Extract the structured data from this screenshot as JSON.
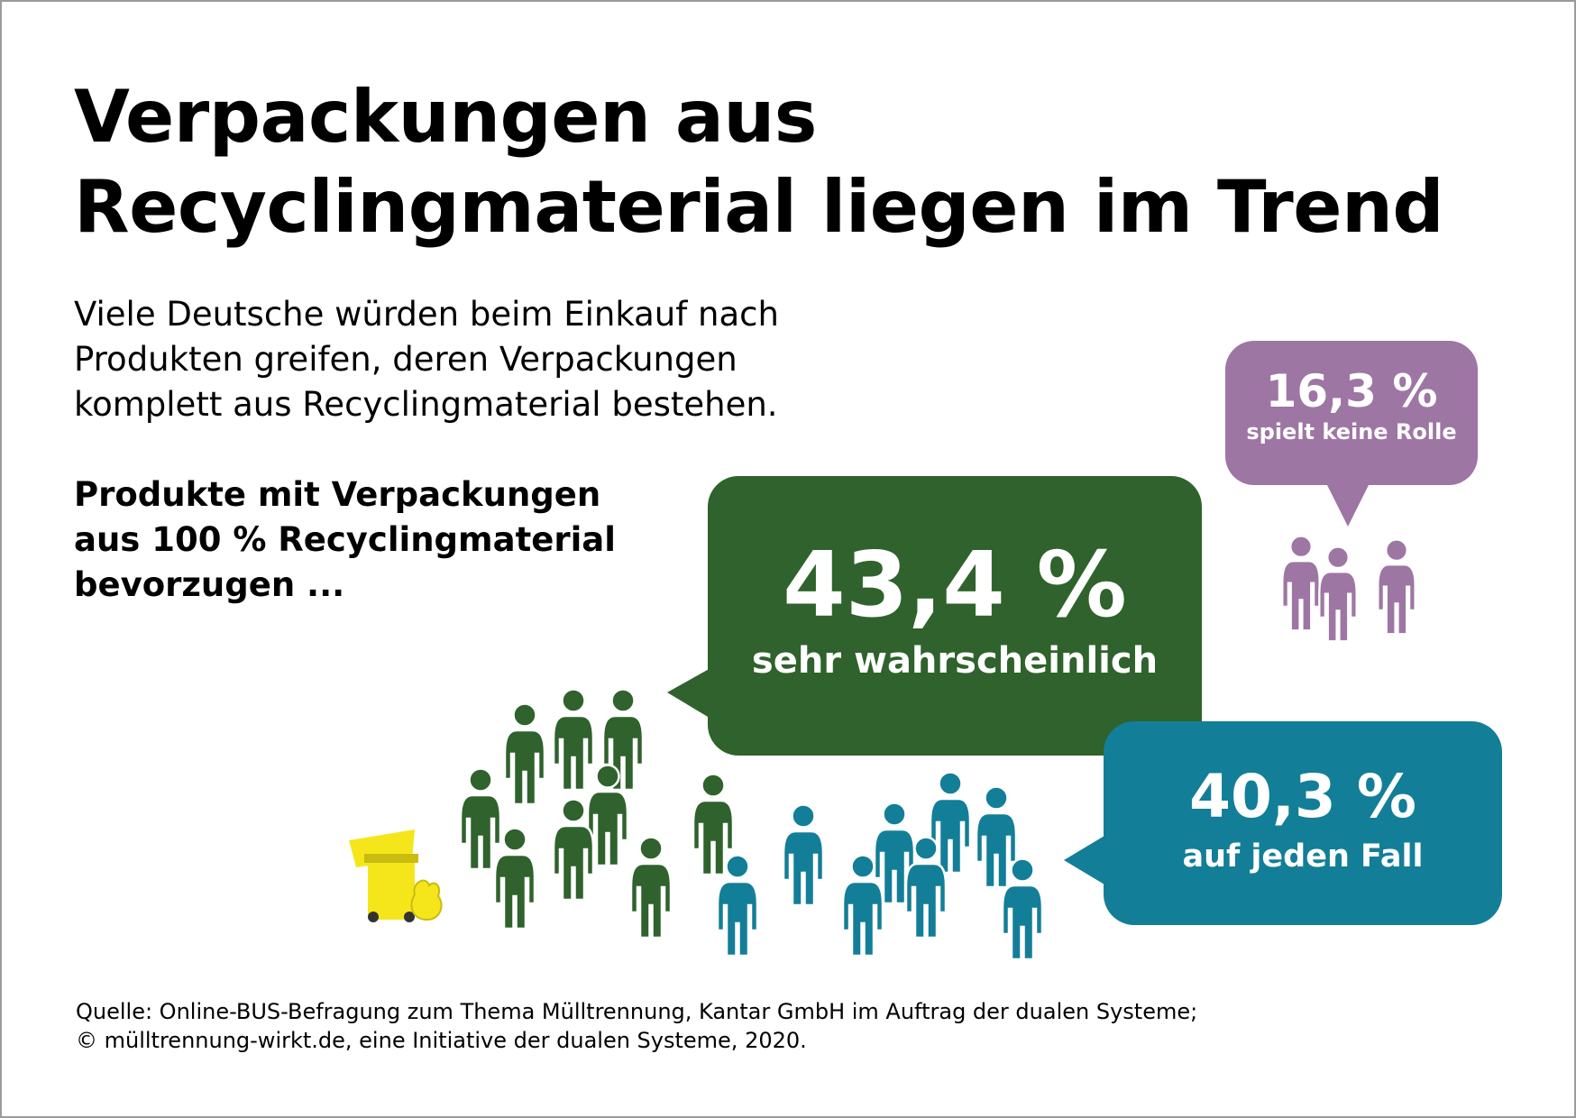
{
  "title": {
    "line1": "Verpackungen aus",
    "line2": "Recyclingmaterial liegen im Trend"
  },
  "intro": {
    "line1": "Viele Deutsche würden beim Einkauf nach",
    "line2": "Produkten greifen, deren Verpackungen",
    "line3": "komplett aus Recyclingmaterial bestehen."
  },
  "question": {
    "line1": "Produkte mit Verpackungen",
    "line2": "aus 100 % Recyclingmaterial",
    "line3": "bevorzugen ..."
  },
  "results": [
    {
      "percent_text": "43,4 %",
      "label": "sehr wahrscheinlich",
      "value": 43.4,
      "color": "#2f622c",
      "icon": "person-icon"
    },
    {
      "percent_text": "40,3 %",
      "label": "auf jeden Fall",
      "value": 40.3,
      "color": "#137e98",
      "icon": "person-icon"
    },
    {
      "percent_text": "16,3 %",
      "label": "spielt keine Rolle",
      "value": 16.3,
      "color": "#9e76a4",
      "icon": "person-icon"
    }
  ],
  "illustration": {
    "icon": "yellow-bin-with-bag-icon",
    "color": "#f5e61b"
  },
  "source": {
    "line1": "Quelle: Online-BUS-Befragung zum Thema Mülltrennung, Kantar GmbH im Auftrag der dualen Systeme;",
    "line2": "© mülltrennung-wirkt.de, eine Initiative der dualen Systeme, 2020."
  }
}
